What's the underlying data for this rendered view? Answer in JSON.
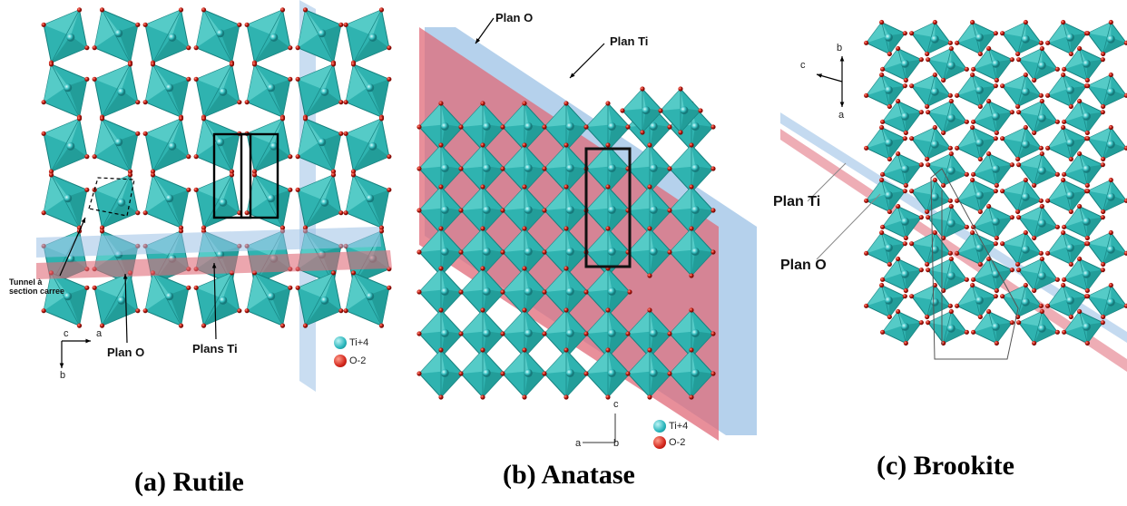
{
  "colors": {
    "octahedron": "#2fb3b0",
    "octahedron_dark": "#16807e",
    "oxygen": "#c8211a",
    "plane_ti": "#9cc1e6",
    "plane_o": "#e06a78"
  },
  "rutile": {
    "caption": "(a) Rutile",
    "tunnel_label_1": "Tunnel à",
    "tunnel_label_2": "section carree",
    "plan_o": "Plan O",
    "plans_ti": "Plans Ti",
    "axis_c": "c",
    "axis_a": "a",
    "axis_b": "b",
    "legend_ti": "Ti+4",
    "legend_o": "O-2"
  },
  "anatase": {
    "caption": "(b) Anatase",
    "plan_o": "Plan O",
    "plan_ti": "Plan Ti",
    "axis_c": "c",
    "axis_a": "a",
    "axis_b": "b",
    "legend_ti": "Ti+4",
    "legend_o": "O-2"
  },
  "brookite": {
    "caption": "(c) Brookite",
    "plan_ti": "Plan Ti",
    "plan_o": "Plan O",
    "axis_c": "c",
    "axis_b": "b",
    "axis_a": "a"
  }
}
